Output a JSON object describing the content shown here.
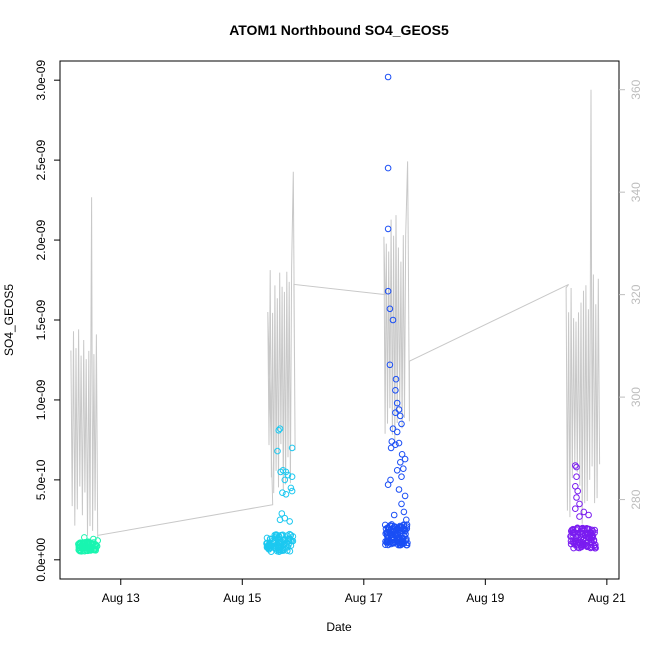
{
  "chart_data": {
    "type": "scatter",
    "title": "ATOM1 Northbound SO4_GEOS5",
    "xlabel": "Date",
    "ylabel": "SO4_GEOS5",
    "x_ticks": [
      "Aug 13",
      "Aug 15",
      "Aug 17",
      "Aug 19",
      "Aug 21"
    ],
    "x_tick_days": [
      13,
      15,
      17,
      19,
      21
    ],
    "xlim_days": [
      12.0,
      21.2
    ],
    "y_ticks": [
      "0.0e+00",
      "5.0e-10",
      "1.0e-09",
      "1.5e-09",
      "2.0e-09",
      "2.5e-09",
      "3.0e-09"
    ],
    "y_tick_values": [
      0,
      5e-10,
      1e-09,
      1.5e-09,
      2e-09,
      2.5e-09,
      3e-09
    ],
    "ylim": [
      -1.2e-10,
      3.12e-09
    ],
    "y2_ticks": [
      "280",
      "300",
      "320",
      "340",
      "360"
    ],
    "y2_tick_values": [
      280,
      300,
      320,
      340,
      360
    ],
    "y2lim": [
      264.5,
      365.6
    ],
    "line_color": "#c8c8c8",
    "series": [
      {
        "color": "#19f5b0",
        "x_range": [
          12.3,
          12.62
        ],
        "base": 8e-11,
        "spread": 6e-11,
        "count": 70,
        "extra": [
          [
            12.55,
            1.3e-10
          ],
          [
            12.4,
            1.4e-10
          ],
          [
            12.62,
            1.2e-10
          ]
        ]
      },
      {
        "color": "#1cc8f0",
        "x_range": [
          15.4,
          15.85
        ],
        "base": 1e-10,
        "spread": 1.1e-10,
        "count": 90,
        "extra": [
          [
            15.62,
            8.2e-10
          ],
          [
            15.6,
            8.1e-10
          ],
          [
            15.58,
            6.8e-10
          ],
          [
            15.82,
            7e-10
          ],
          [
            15.67,
            5.6e-10
          ],
          [
            15.63,
            5.5e-10
          ],
          [
            15.72,
            5.5e-10
          ],
          [
            15.75,
            5.3e-10
          ],
          [
            15.7,
            5e-10
          ],
          [
            15.82,
            5.2e-10
          ],
          [
            15.8,
            4.5e-10
          ],
          [
            15.66,
            4.2e-10
          ],
          [
            15.72,
            4.1e-10
          ],
          [
            15.82,
            4.3e-10
          ],
          [
            15.65,
            2.9e-10
          ],
          [
            15.7,
            2.6e-10
          ],
          [
            15.62,
            2.5e-10
          ],
          [
            15.78,
            2.4e-10
          ]
        ]
      },
      {
        "color": "#1a4ef5",
        "x_range": [
          17.35,
          17.72
        ],
        "base": 1.5e-10,
        "spread": 1.3e-10,
        "count": 110,
        "extra": [
          [
            17.4,
            3.02e-09
          ],
          [
            17.4,
            2.45e-09
          ],
          [
            17.4,
            2.07e-09
          ],
          [
            17.4,
            1.68e-09
          ],
          [
            17.43,
            1.57e-09
          ],
          [
            17.48,
            1.5e-09
          ],
          [
            17.43,
            1.22e-09
          ],
          [
            17.53,
            1.13e-09
          ],
          [
            17.52,
            1.06e-09
          ],
          [
            17.55,
            9.8e-10
          ],
          [
            17.58,
            9.4e-10
          ],
          [
            17.52,
            9.2e-10
          ],
          [
            17.6,
            9e-10
          ],
          [
            17.62,
            8.5e-10
          ],
          [
            17.48,
            8.2e-10
          ],
          [
            17.55,
            8e-10
          ],
          [
            17.46,
            7.4e-10
          ],
          [
            17.52,
            7.2e-10
          ],
          [
            17.58,
            7.3e-10
          ],
          [
            17.45,
            7e-10
          ],
          [
            17.63,
            6.6e-10
          ],
          [
            17.68,
            6.3e-10
          ],
          [
            17.6,
            6.1e-10
          ],
          [
            17.55,
            5.6e-10
          ],
          [
            17.65,
            5.7e-10
          ],
          [
            17.44,
            5e-10
          ],
          [
            17.62,
            5.2e-10
          ],
          [
            17.4,
            4.7e-10
          ],
          [
            17.58,
            4.4e-10
          ],
          [
            17.68,
            4e-10
          ],
          [
            17.62,
            3.5e-10
          ],
          [
            17.66,
            3e-10
          ],
          [
            17.5,
            2.8e-10
          ],
          [
            17.7,
            2.5e-10
          ]
        ]
      },
      {
        "color": "#7a1cf0",
        "x_range": [
          20.4,
          20.82
        ],
        "base": 1.3e-10,
        "spread": 1.3e-10,
        "count": 100,
        "extra": [
          [
            20.48,
            5.9e-10
          ],
          [
            20.5,
            5.8e-10
          ],
          [
            20.5,
            5.2e-10
          ],
          [
            20.48,
            4.6e-10
          ],
          [
            20.52,
            4.3e-10
          ],
          [
            20.5,
            3.9e-10
          ],
          [
            20.55,
            3.5e-10
          ],
          [
            20.48,
            3.2e-10
          ],
          [
            20.62,
            3e-10
          ],
          [
            20.7,
            2.8e-10
          ],
          [
            20.55,
            2.7e-10
          ]
        ]
      }
    ],
    "secondary_line": {
      "segments": [
        {
          "x_range": [
            12.18,
            12.62
          ],
          "low": 272,
          "high": 314,
          "peak": 339,
          "peak_x": 12.52,
          "count": 22
        },
        {
          "x_range": [
            15.42,
            15.87
          ],
          "low": 279,
          "high": 326,
          "peak": 344,
          "peak_x": 15.84,
          "count": 24
        },
        {
          "x_range": [
            17.33,
            17.75
          ],
          "low": 290,
          "high": 336,
          "peak": 346,
          "peak_x": 17.72,
          "count": 22
        },
        {
          "x_range": [
            20.33,
            20.88
          ],
          "low": 275,
          "high": 324,
          "peak": 360,
          "peak_x": 20.74,
          "count": 28
        }
      ],
      "connectors": [
        [
          [
            12.62,
            273
          ],
          [
            15.5,
            279
          ]
        ],
        [
          [
            15.85,
            322
          ],
          [
            17.35,
            320
          ]
        ],
        [
          [
            17.75,
            307
          ],
          [
            20.37,
            322
          ]
        ]
      ]
    }
  }
}
